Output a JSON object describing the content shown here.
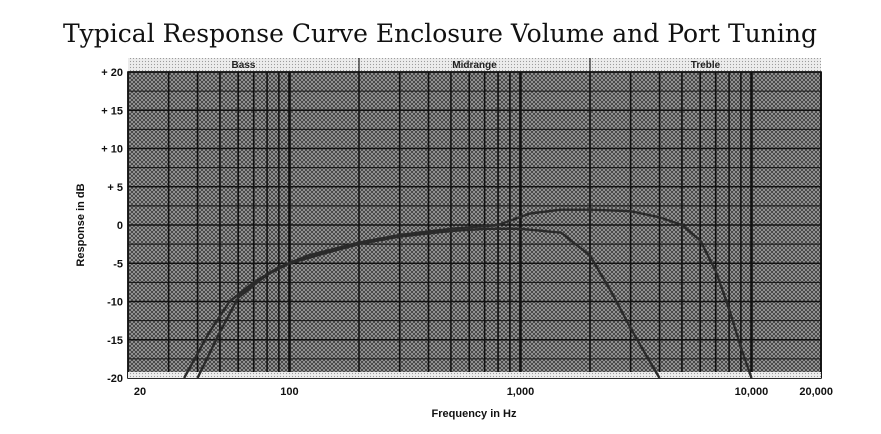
{
  "chart_data": {
    "type": "line",
    "title": "Typical Response Curve Enclosure Volume and Port Tuning",
    "xlabel": "Frequency in Hz",
    "ylabel": "Response in dB",
    "x_scale": "log",
    "xlim": [
      20,
      20000
    ],
    "ylim": [
      -20,
      20
    ],
    "grid": true,
    "x_tick_labels": [
      {
        "value": 20,
        "label": "20"
      },
      {
        "value": 100,
        "label": "100"
      },
      {
        "value": 1000,
        "label": "1,000"
      },
      {
        "value": 10000,
        "label": "10,000"
      },
      {
        "value": 20000,
        "label": "20,000"
      }
    ],
    "y_tick_labels": [
      {
        "value": 20,
        "label": "+ 20"
      },
      {
        "value": 15,
        "label": "+ 15"
      },
      {
        "value": 10,
        "label": "+ 10"
      },
      {
        "value": 5,
        "label": "+ 5"
      },
      {
        "value": 0,
        "label": "0"
      },
      {
        "value": -5,
        "label": "-5"
      },
      {
        "value": -10,
        "label": "-10"
      },
      {
        "value": -15,
        "label": "-15"
      },
      {
        "value": -20,
        "label": "-20"
      }
    ],
    "bands": [
      {
        "label": "Bass",
        "from": 20,
        "to": 200
      },
      {
        "label": "Midrange",
        "from": 200,
        "to": 2000
      },
      {
        "label": "Treble",
        "from": 2000,
        "to": 20000
      }
    ],
    "series": [
      {
        "x": [
          40,
          50,
          60,
          80,
          100,
          150,
          200,
          300,
          500,
          700,
          1000,
          1500,
          2000,
          2500,
          3000,
          3500,
          4000
        ],
        "y": [
          -20,
          -14,
          -9.5,
          -6.5,
          -5,
          -3.5,
          -2.5,
          -1.5,
          -0.8,
          -0.5,
          -0.5,
          -1,
          -4,
          -9,
          -13.5,
          -17,
          -20
        ]
      },
      {
        "x": [
          35,
          45,
          55,
          70,
          90,
          120,
          200,
          300,
          500,
          800,
          1100,
          1500,
          2000,
          3000,
          4000,
          5000,
          6000,
          7000,
          8000,
          9000,
          10000
        ],
        "y": [
          -20,
          -14,
          -10,
          -7.5,
          -5.5,
          -4,
          -2.3,
          -1.3,
          -0.5,
          0,
          1.5,
          2,
          2,
          1.8,
          1,
          0,
          -2,
          -6,
          -11,
          -16,
          -20
        ]
      }
    ],
    "colors": {
      "plot_background": "#9a9a9a",
      "grid": "#111111",
      "line": "#2a2a2a",
      "band_background": "#e6e6e6"
    }
  }
}
